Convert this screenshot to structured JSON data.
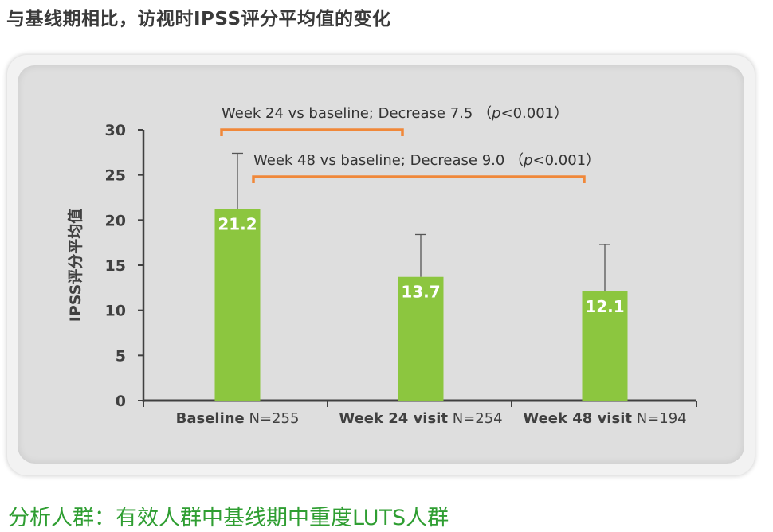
{
  "title": "与基线期相比，访视时IPSS评分平均值的变化",
  "footnote": "分析人群：有效人群中基线期中重度LUTS人群",
  "colors": {
    "bar": "#8cc63f",
    "bracket": "#f0883a",
    "axis": "#404040",
    "title": "#3a3a3a",
    "footnote": "#2f9e32"
  },
  "chart_data": {
    "type": "bar",
    "ylabel": "IPSS评分平均值",
    "ylim": [
      0,
      30
    ],
    "yticks": [
      0,
      5,
      10,
      15,
      20,
      25,
      30
    ],
    "categories": [
      {
        "bold": "Baseline",
        "normal": " N=255"
      },
      {
        "bold": "Week 24 visit",
        "normal": " N=254"
      },
      {
        "bold": "Week 48 visit",
        "normal": " N=194"
      }
    ],
    "values": [
      21.2,
      13.7,
      12.1
    ],
    "value_labels": [
      "21.2",
      "13.7",
      "12.1"
    ],
    "error_upper": [
      27.4,
      18.4,
      17.3
    ],
    "comparisons": [
      {
        "from": 0,
        "to": 1,
        "text": "Week 24 vs baseline; Decrease 7.5",
        "p_open": "（",
        "p": "p",
        "p_rel": "<0.001",
        "p_close": "）"
      },
      {
        "from": 0,
        "to": 2,
        "text": "Week 48 vs baseline; Decrease 9.0",
        "p_open": "（",
        "p": "p",
        "p_rel": "<0.001",
        "p_close": "）"
      }
    ]
  }
}
